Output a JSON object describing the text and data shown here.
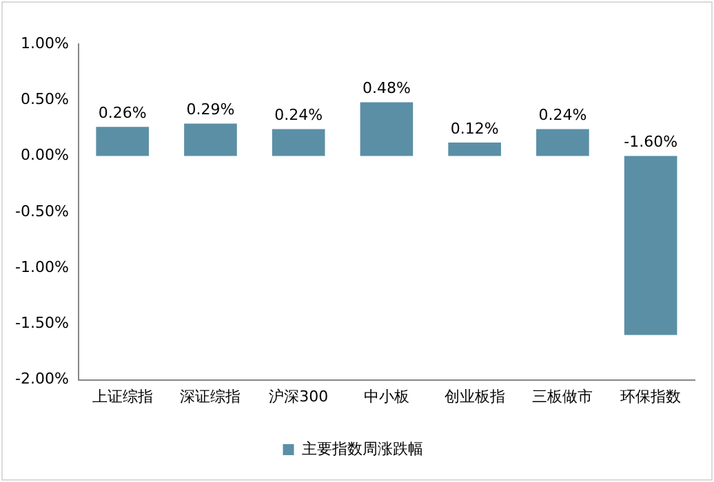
{
  "chart_data": {
    "type": "bar",
    "categories": [
      "上证综指",
      "深证综指",
      "沪深300",
      "中小板",
      "创业板指",
      "三板做市",
      "环保指数"
    ],
    "series": [
      {
        "name": "主要指数周涨跌幅",
        "color": "#5b8fa6",
        "values": [
          0.26,
          0.29,
          0.24,
          0.48,
          0.12,
          0.24,
          -1.6
        ],
        "value_labels": [
          "0.26%",
          "0.29%",
          "0.24%",
          "0.48%",
          "0.12%",
          "0.24%",
          "-1.60%"
        ]
      }
    ],
    "ylim": [
      -2,
      1
    ],
    "yticks": [
      {
        "value": -2,
        "label": "-2.00%"
      },
      {
        "value": -1.5,
        "label": "-1.50%"
      },
      {
        "value": -1,
        "label": "-1.00%"
      },
      {
        "value": -0.5,
        "label": "-0.50%"
      },
      {
        "value": 0,
        "label": "0.00%"
      },
      {
        "value": 0.5,
        "label": "0.50%"
      },
      {
        "value": 1,
        "label": "1.00%"
      }
    ],
    "grid": false,
    "legend": "bottom"
  }
}
